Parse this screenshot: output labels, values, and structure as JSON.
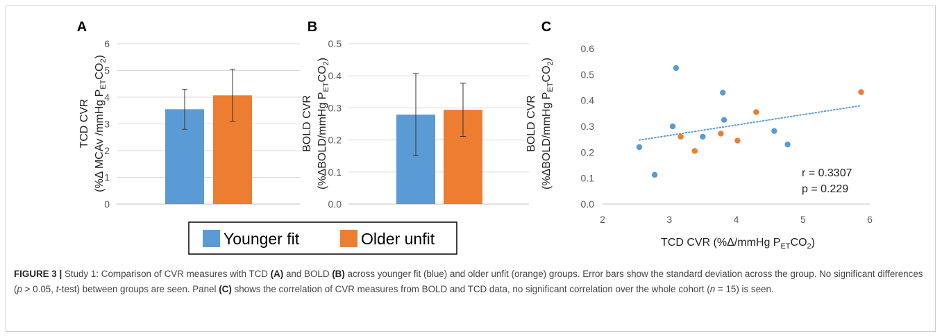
{
  "colors": {
    "younger": "#5b9bd5",
    "older": "#ed7d31",
    "trend": "#5b9bd5"
  },
  "panels": {
    "a": {
      "letter": "A",
      "ylabel_line1": "TCD CVR",
      "ylabel_line2": "(%Δ MCAv /mmHg P",
      "ylabel_sub": "ET",
      "ylabel_tail": "CO",
      "ylabel_sub2": "2",
      "ylabel_close": ")"
    },
    "b": {
      "letter": "B",
      "ylabel_line1": "BOLD CVR",
      "ylabel_line2": "(%ΔBOLD/mmHg P",
      "ylabel_sub": "ET",
      "ylabel_tail": "CO",
      "ylabel_sub2": "2",
      "ylabel_close": ")"
    },
    "c": {
      "letter": "C",
      "ylabel_line1": "BOLD CVR",
      "ylabel_line2": "(%ΔBOLD/mmHg P",
      "ylabel_sub": "ET",
      "ylabel_tail": "CO",
      "ylabel_sub2": "2",
      "ylabel_close": ")",
      "xlabel_main": "TCD CVR (%Δ/mmHg P",
      "xlabel_sub": "ET",
      "xlabel_tail": "CO",
      "xlabel_sub2": "2",
      "xlabel_close": ")",
      "r_text": "r = 0.3307",
      "p_text": "p = 0.229"
    }
  },
  "legend": {
    "younger": "Younger fit",
    "older": "Older unfit"
  },
  "caption": {
    "label": "FIGURE 3 |",
    "t1": " Study 1: Comparison of CVR measures with TCD ",
    "a": "(A)",
    "t2": " and BOLD ",
    "b": "(B)",
    "t3": " across younger fit (blue) and older unfit (orange) groups. Error bars show the standard deviation across the group. No significant differences (",
    "p": "p",
    "t4": " > 0.05, ",
    "t": "t",
    "t5": "-test) between groups are seen. Panel ",
    "c": "(C)",
    "t6": " shows the correlation of CVR measures from BOLD and TCD data, no significant correlation over the whole cohort (",
    "n": "n",
    "t7": " = 15) is seen."
  },
  "chart_data": [
    {
      "type": "bar",
      "categories": [
        "Younger fit",
        "Older unfit"
      ],
      "values": [
        3.55,
        4.07
      ],
      "errors": [
        0.75,
        0.97
      ],
      "ylim": [
        0,
        6
      ],
      "yticks": [
        "0",
        "1",
        "2",
        "3",
        "4",
        "5",
        "6"
      ],
      "ylabel": "TCD CVR (%Δ MCAv /mmHg PETCO2)",
      "grid": true
    },
    {
      "type": "bar",
      "categories": [
        "Younger fit",
        "Older unfit"
      ],
      "values": [
        0.279,
        0.294
      ],
      "errors": [
        0.128,
        0.083
      ],
      "ylim": [
        0,
        0.5
      ],
      "yticks": [
        "0.0",
        "0.1",
        "0.2",
        "0.3",
        "0.4",
        "0.5"
      ],
      "ylabel": "BOLD CVR (%ΔBOLD/mmHg PETCO2)",
      "grid": true
    },
    {
      "type": "scatter",
      "xlim": [
        2,
        6
      ],
      "ylim": [
        0,
        0.6
      ],
      "xticks": [
        "2",
        "3",
        "4",
        "5",
        "6"
      ],
      "yticks": [
        "0.0",
        "0.1",
        "0.2",
        "0.3",
        "0.4",
        "0.5",
        "0.6"
      ],
      "xlabel": "TCD CVR (%Δ/mmHg PETCO2)",
      "ylabel": "BOLD CVR (%ΔBOLD/mmHg PETCO2)",
      "grid": false,
      "series": [
        {
          "name": "Younger fit",
          "x": [
            2.55,
            2.78,
            3.05,
            3.1,
            3.5,
            3.8,
            3.82,
            4.57,
            4.77
          ],
          "y": [
            0.22,
            0.113,
            0.3,
            0.525,
            0.26,
            0.43,
            0.325,
            0.282,
            0.23
          ]
        },
        {
          "name": "Older unfit",
          "x": [
            3.17,
            3.38,
            3.77,
            4.02,
            4.3,
            5.87
          ],
          "y": [
            0.26,
            0.205,
            0.272,
            0.245,
            0.355,
            0.432
          ]
        }
      ],
      "trendline": {
        "x": [
          2.55,
          5.87
        ],
        "y": [
          0.247,
          0.38
        ]
      },
      "annotations": [
        "r = 0.3307",
        "p = 0.229"
      ]
    }
  ]
}
